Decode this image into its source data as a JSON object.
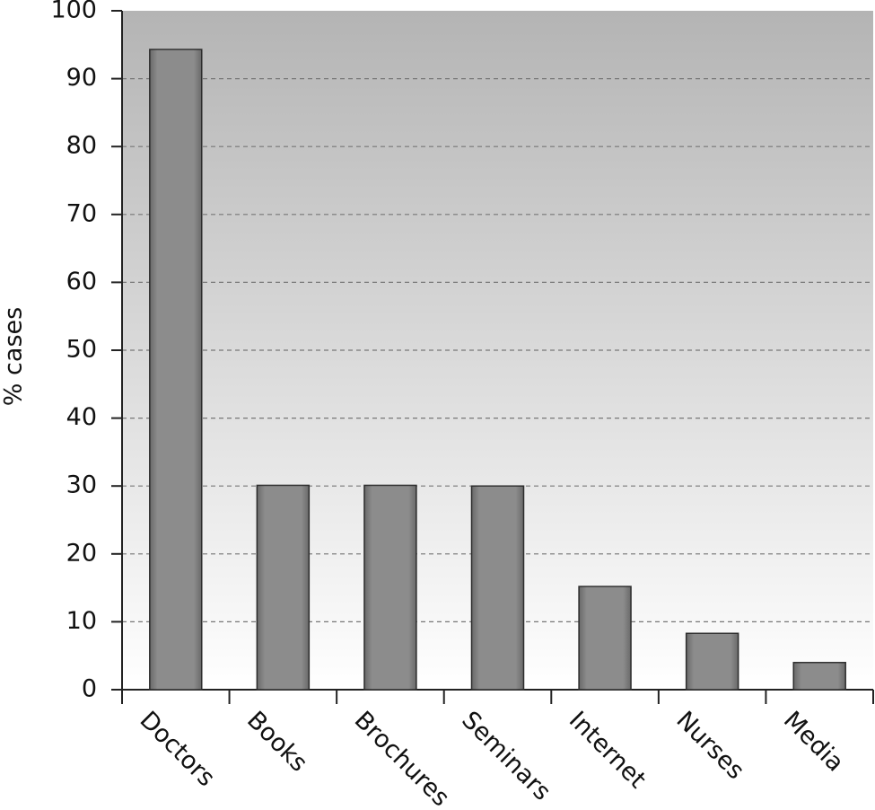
{
  "chart_data": {
    "type": "bar",
    "y_label": "% cases",
    "categories": [
      "Doctors",
      "Books",
      "Brochures",
      "Seminars",
      "Internet",
      "Nurses",
      "Media"
    ],
    "values": [
      94.3,
      30.1,
      30.1,
      30,
      15.2,
      8.3,
      4
    ],
    "color": "#8c8c8c",
    "ylim": [
      0,
      100
    ],
    "yticks": [
      0,
      10,
      20,
      30,
      40,
      50,
      60,
      70,
      80,
      90,
      100
    ],
    "grid": true
  }
}
